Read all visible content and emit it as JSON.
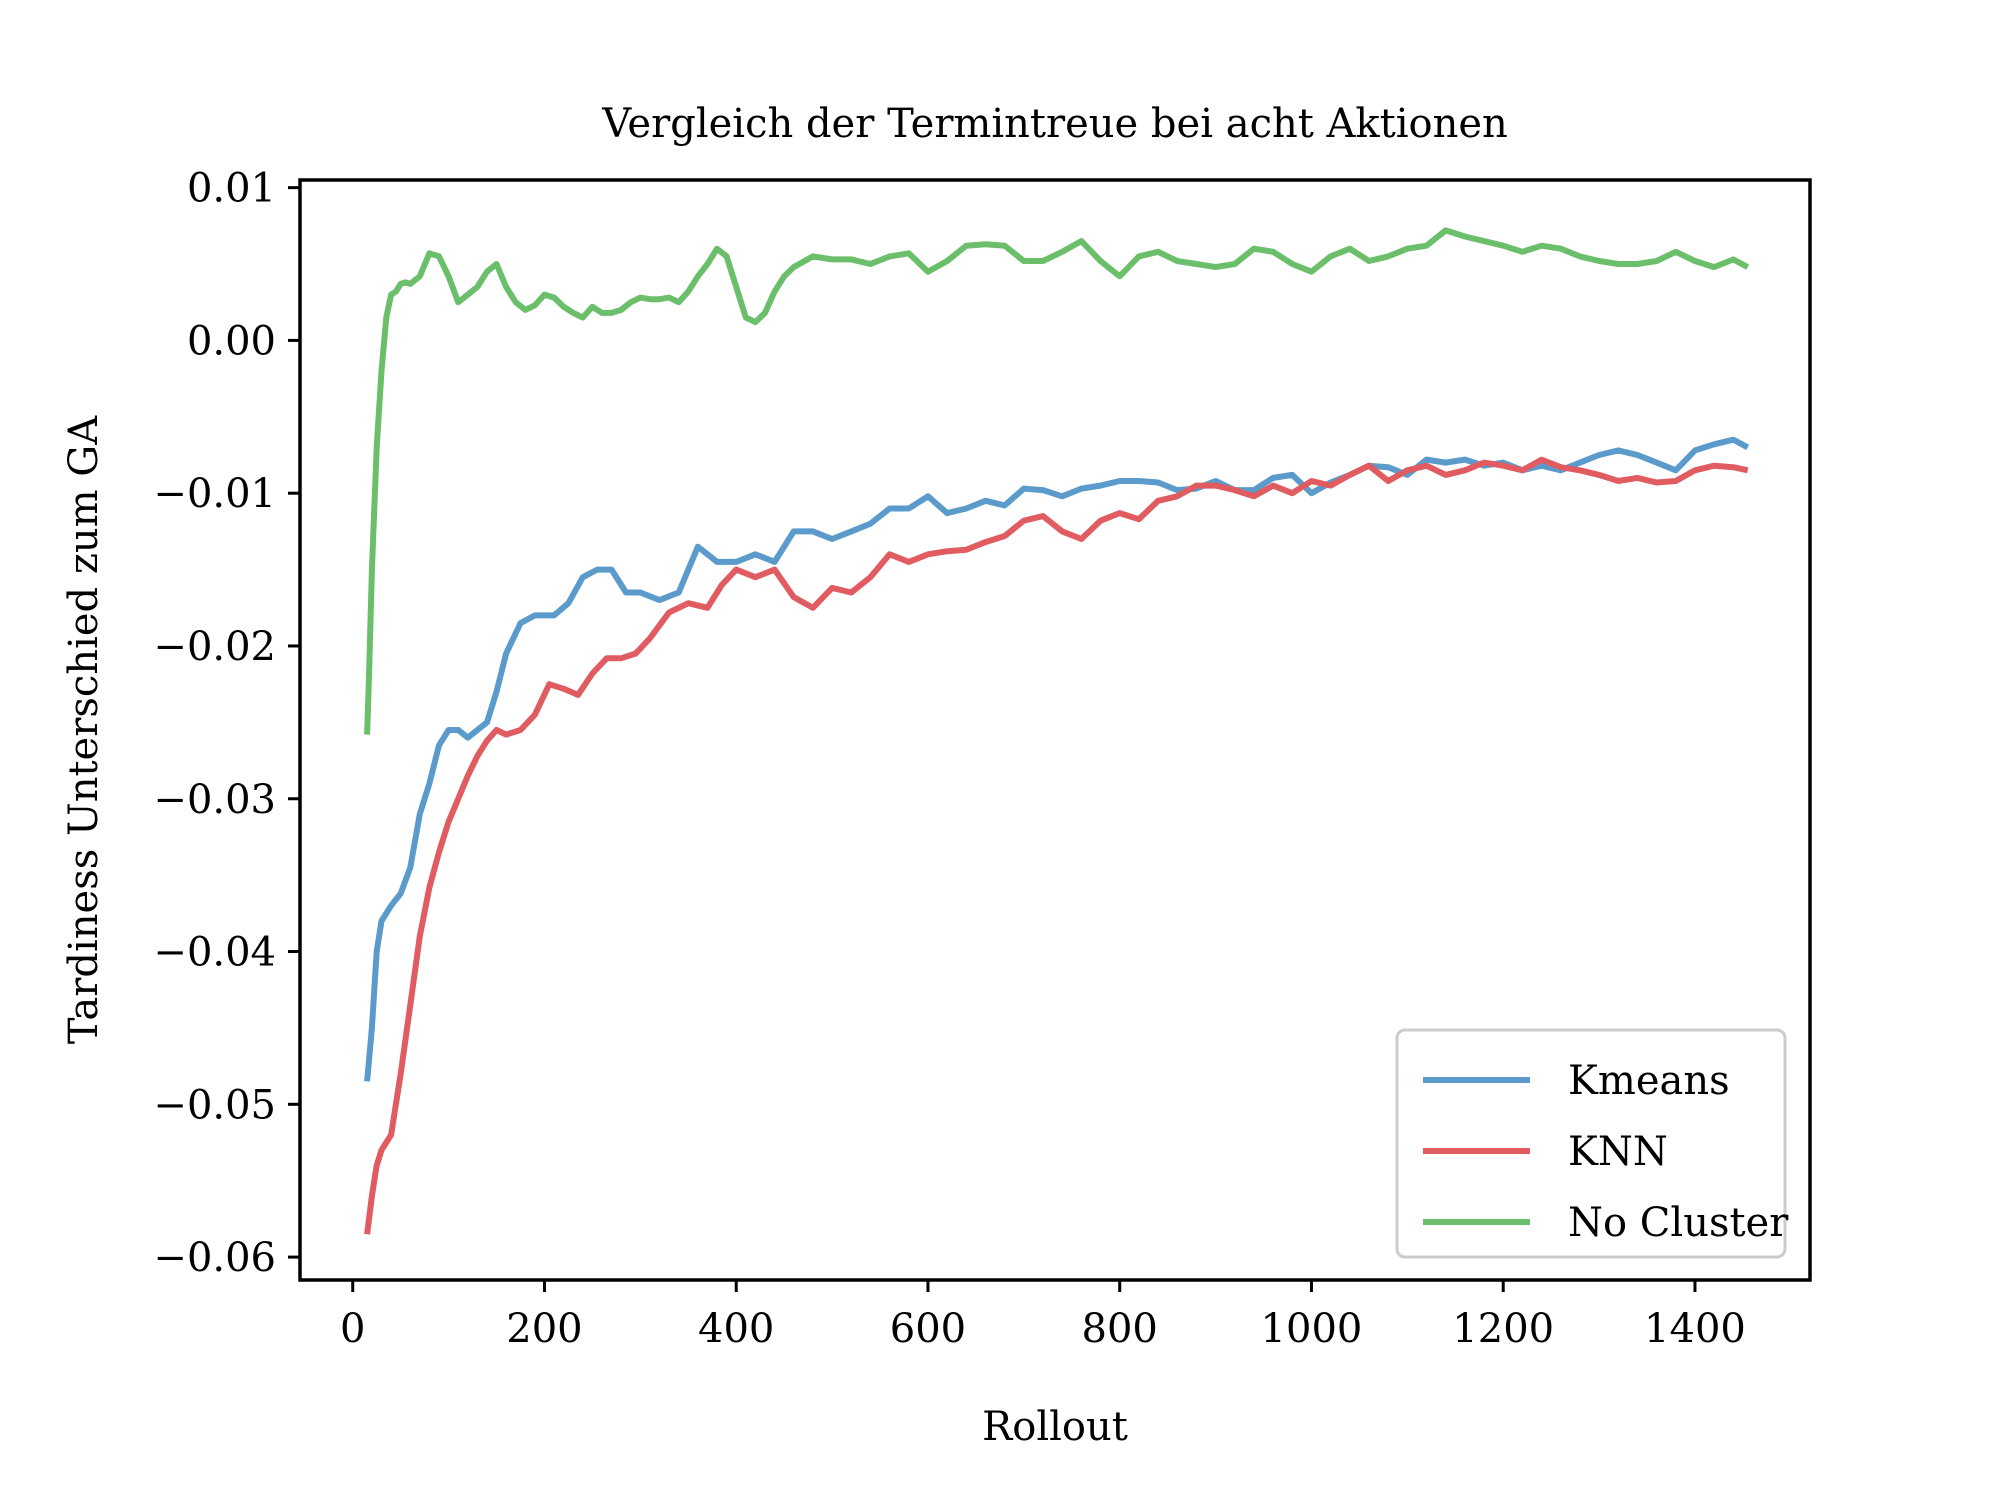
{
  "chart_data": {
    "type": "line",
    "title": "Vergleich der Termintreue bei acht Aktionen",
    "xlabel": "Rollout",
    "ylabel": "Tardiness Unterschied zum GA",
    "xlim": [
      -55,
      1520
    ],
    "ylim": [
      -0.0615,
      0.0105
    ],
    "xticks": [
      0,
      200,
      400,
      600,
      800,
      1000,
      1200,
      1400
    ],
    "xtick_labels": [
      "0",
      "200",
      "400",
      "600",
      "800",
      "1000",
      "1200",
      "1400"
    ],
    "yticks": [
      0.01,
      0.0,
      -0.01,
      -0.02,
      -0.03,
      -0.04,
      -0.05,
      -0.06
    ],
    "ytick_labels": [
      "0.01",
      "0.00",
      "−0.01",
      "−0.02",
      "−0.03",
      "−0.04",
      "−0.05",
      "−0.06"
    ],
    "grid": false,
    "legend_position": "lower-right",
    "series": [
      {
        "name": "Kmeans",
        "color": "#5b9bcc",
        "x": [
          15,
          20,
          25,
          30,
          40,
          50,
          60,
          70,
          80,
          90,
          100,
          110,
          120,
          130,
          140,
          150,
          160,
          175,
          190,
          210,
          225,
          240,
          255,
          270,
          285,
          300,
          320,
          340,
          360,
          380,
          400,
          420,
          440,
          460,
          480,
          500,
          520,
          540,
          560,
          580,
          600,
          620,
          640,
          660,
          680,
          700,
          720,
          740,
          760,
          780,
          800,
          820,
          840,
          860,
          880,
          900,
          920,
          940,
          960,
          980,
          1000,
          1020,
          1040,
          1060,
          1080,
          1100,
          1120,
          1140,
          1160,
          1180,
          1200,
          1220,
          1240,
          1260,
          1280,
          1300,
          1320,
          1340,
          1360,
          1380,
          1400,
          1420,
          1440,
          1455
        ],
        "y": [
          -0.0485,
          -0.045,
          -0.04,
          -0.038,
          -0.037,
          -0.0362,
          -0.0345,
          -0.031,
          -0.029,
          -0.0265,
          -0.0255,
          -0.0255,
          -0.026,
          -0.0255,
          -0.025,
          -0.023,
          -0.0205,
          -0.0185,
          -0.018,
          -0.018,
          -0.0172,
          -0.0155,
          -0.015,
          -0.015,
          -0.0165,
          -0.0165,
          -0.017,
          -0.0165,
          -0.0135,
          -0.0145,
          -0.0145,
          -0.014,
          -0.0145,
          -0.0125,
          -0.0125,
          -0.013,
          -0.0125,
          -0.012,
          -0.011,
          -0.011,
          -0.0102,
          -0.0113,
          -0.011,
          -0.0105,
          -0.0108,
          -0.0097,
          -0.0098,
          -0.0102,
          -0.0097,
          -0.0095,
          -0.0092,
          -0.0092,
          -0.0093,
          -0.0098,
          -0.0097,
          -0.0092,
          -0.0098,
          -0.0098,
          -0.009,
          -0.0088,
          -0.01,
          -0.0093,
          -0.0088,
          -0.0082,
          -0.0083,
          -0.0088,
          -0.0078,
          -0.008,
          -0.0078,
          -0.0082,
          -0.008,
          -0.0085,
          -0.0082,
          -0.0085,
          -0.008,
          -0.0075,
          -0.0072,
          -0.0075,
          -0.008,
          -0.0085,
          -0.0072,
          -0.0068,
          -0.0065,
          -0.007
        ]
      },
      {
        "name": "KNN",
        "color": "#e05c61",
        "x": [
          15,
          20,
          25,
          30,
          35,
          40,
          50,
          60,
          70,
          80,
          90,
          100,
          110,
          120,
          130,
          140,
          150,
          160,
          175,
          190,
          205,
          220,
          235,
          250,
          265,
          280,
          295,
          310,
          330,
          350,
          370,
          385,
          400,
          420,
          440,
          460,
          480,
          500,
          520,
          540,
          560,
          580,
          600,
          620,
          640,
          660,
          680,
          700,
          720,
          740,
          760,
          780,
          800,
          820,
          840,
          860,
          880,
          900,
          920,
          940,
          960,
          980,
          1000,
          1020,
          1040,
          1060,
          1080,
          1100,
          1120,
          1140,
          1160,
          1180,
          1200,
          1220,
          1240,
          1260,
          1280,
          1300,
          1320,
          1340,
          1360,
          1380,
          1400,
          1420,
          1440,
          1455
        ],
        "y": [
          -0.0585,
          -0.056,
          -0.054,
          -0.053,
          -0.0525,
          -0.052,
          -0.048,
          -0.0435,
          -0.039,
          -0.0358,
          -0.0335,
          -0.0315,
          -0.03,
          -0.0285,
          -0.0272,
          -0.0262,
          -0.0255,
          -0.0258,
          -0.0255,
          -0.0245,
          -0.0225,
          -0.0228,
          -0.0232,
          -0.0218,
          -0.0208,
          -0.0208,
          -0.0205,
          -0.0195,
          -0.0178,
          -0.0172,
          -0.0175,
          -0.016,
          -0.015,
          -0.0155,
          -0.015,
          -0.0168,
          -0.0175,
          -0.0162,
          -0.0165,
          -0.0155,
          -0.014,
          -0.0145,
          -0.014,
          -0.0138,
          -0.0137,
          -0.0132,
          -0.0128,
          -0.0118,
          -0.0115,
          -0.0125,
          -0.013,
          -0.0118,
          -0.0113,
          -0.0117,
          -0.0105,
          -0.0102,
          -0.0095,
          -0.0095,
          -0.0098,
          -0.0102,
          -0.0095,
          -0.01,
          -0.0092,
          -0.0095,
          -0.0088,
          -0.0082,
          -0.0092,
          -0.0085,
          -0.0082,
          -0.0088,
          -0.0085,
          -0.008,
          -0.0082,
          -0.0085,
          -0.0078,
          -0.0083,
          -0.0085,
          -0.0088,
          -0.0092,
          -0.009,
          -0.0093,
          -0.0092,
          -0.0085,
          -0.0082,
          -0.0083,
          -0.0085
        ]
      },
      {
        "name": "No Cluster",
        "color": "#6cbf6a",
        "x": [
          15,
          17,
          20,
          25,
          30,
          35,
          40,
          45,
          50,
          55,
          60,
          70,
          80,
          90,
          100,
          110,
          120,
          130,
          140,
          150,
          160,
          170,
          180,
          190,
          200,
          210,
          220,
          230,
          240,
          250,
          260,
          270,
          280,
          290,
          300,
          310,
          320,
          330,
          340,
          350,
          360,
          370,
          380,
          390,
          400,
          410,
          420,
          430,
          440,
          450,
          460,
          480,
          500,
          520,
          540,
          560,
          580,
          600,
          620,
          640,
          660,
          680,
          700,
          720,
          740,
          760,
          780,
          800,
          820,
          840,
          860,
          880,
          900,
          920,
          940,
          960,
          980,
          1000,
          1020,
          1040,
          1060,
          1080,
          1100,
          1120,
          1140,
          1160,
          1180,
          1200,
          1220,
          1240,
          1260,
          1280,
          1300,
          1320,
          1340,
          1360,
          1380,
          1400,
          1420,
          1440,
          1455
        ],
        "y": [
          -0.0258,
          -0.022,
          -0.015,
          -0.007,
          -0.002,
          0.0015,
          0.003,
          0.0032,
          0.0037,
          0.0038,
          0.0037,
          0.0042,
          0.0057,
          0.0055,
          0.0042,
          0.0025,
          0.003,
          0.0035,
          0.0045,
          0.005,
          0.0035,
          0.0025,
          0.002,
          0.0023,
          0.003,
          0.0028,
          0.0022,
          0.0018,
          0.0015,
          0.0022,
          0.0018,
          0.0018,
          0.002,
          0.0025,
          0.0028,
          0.0027,
          0.0027,
          0.0028,
          0.0025,
          0.0032,
          0.0042,
          0.005,
          0.006,
          0.0055,
          0.0035,
          0.0015,
          0.0012,
          0.0018,
          0.0032,
          0.0042,
          0.0048,
          0.0055,
          0.0053,
          0.0053,
          0.005,
          0.0055,
          0.0057,
          0.0045,
          0.0052,
          0.0062,
          0.0063,
          0.0062,
          0.0052,
          0.0052,
          0.0058,
          0.0065,
          0.0052,
          0.0042,
          0.0055,
          0.0058,
          0.0052,
          0.005,
          0.0048,
          0.005,
          0.006,
          0.0058,
          0.005,
          0.0045,
          0.0055,
          0.006,
          0.0052,
          0.0055,
          0.006,
          0.0062,
          0.0072,
          0.0068,
          0.0065,
          0.0062,
          0.0058,
          0.0062,
          0.006,
          0.0055,
          0.0052,
          0.005,
          0.005,
          0.0052,
          0.0058,
          0.0052,
          0.0048,
          0.0053,
          0.0048
        ]
      }
    ]
  }
}
